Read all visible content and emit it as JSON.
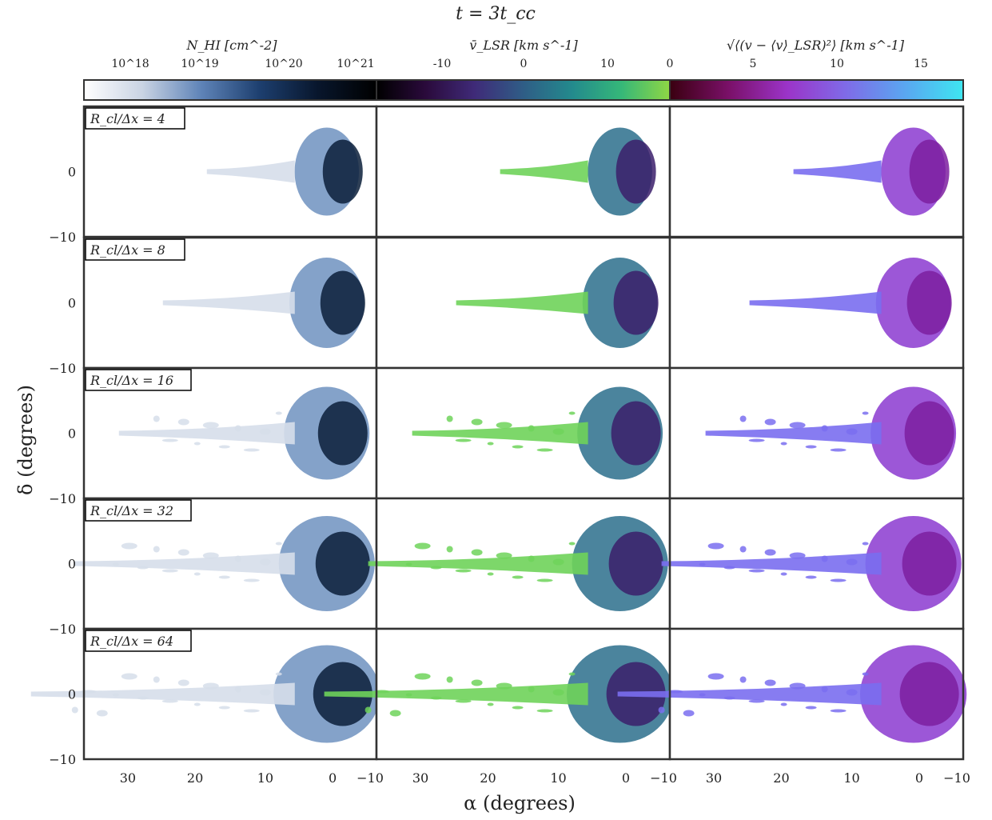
{
  "title": "t = 3t_cc",
  "colorbars": [
    {
      "label": "N_HI [cm^-2]",
      "ticks": [
        "10^18",
        "10^19",
        "10^20",
        "10^21"
      ],
      "colors": [
        "#ffffff",
        "#c9d3e3",
        "#5f84b8",
        "#1d3f6f",
        "#08162c",
        "#000000"
      ]
    },
    {
      "label": "v̄_LSR [km s^-1]",
      "ticks": [
        "-10",
        "0",
        "10",
        "0"
      ],
      "colors": [
        "#000000",
        "#2a0a3b",
        "#3f2a78",
        "#2f5d86",
        "#238a8d",
        "#35b779",
        "#8fd744"
      ]
    },
    {
      "label": "√⟨(v − ⟨v⟩_LSR)²⟩ [km s^-1]",
      "ticks": [
        "5",
        "10",
        "15"
      ],
      "colors": [
        "#3a0010",
        "#7a1068",
        "#9b34c8",
        "#7f6be8",
        "#5aa6f0",
        "#3ee6f0"
      ]
    }
  ],
  "rows": [
    {
      "label": "R_cl/Δx = 4"
    },
    {
      "label": "R_cl/Δx = 8"
    },
    {
      "label": "R_cl/Δx = 16"
    },
    {
      "label": "R_cl/Δx = 32"
    },
    {
      "label": "R_cl/Δx = 64"
    }
  ],
  "ytick_labels": [
    "0",
    "−10"
  ],
  "xtick_labels": [
    "30",
    "20",
    "10",
    "0",
    "−10"
  ],
  "xlabel": "α (degrees)",
  "ylabel": "δ (degrees)",
  "panel_colors": {
    "column_density": {
      "tail": "#d6deea",
      "mid": "#6f92c0",
      "core": "#0b1e3a"
    },
    "velocity": {
      "tail": "#6fd35a",
      "mid": "#2b6f8c",
      "core": "#3b1f6b"
    },
    "dispersion": {
      "tail": "#7a6ef0",
      "mid": "#8b3ad0",
      "core": "#7c1fa0"
    }
  }
}
